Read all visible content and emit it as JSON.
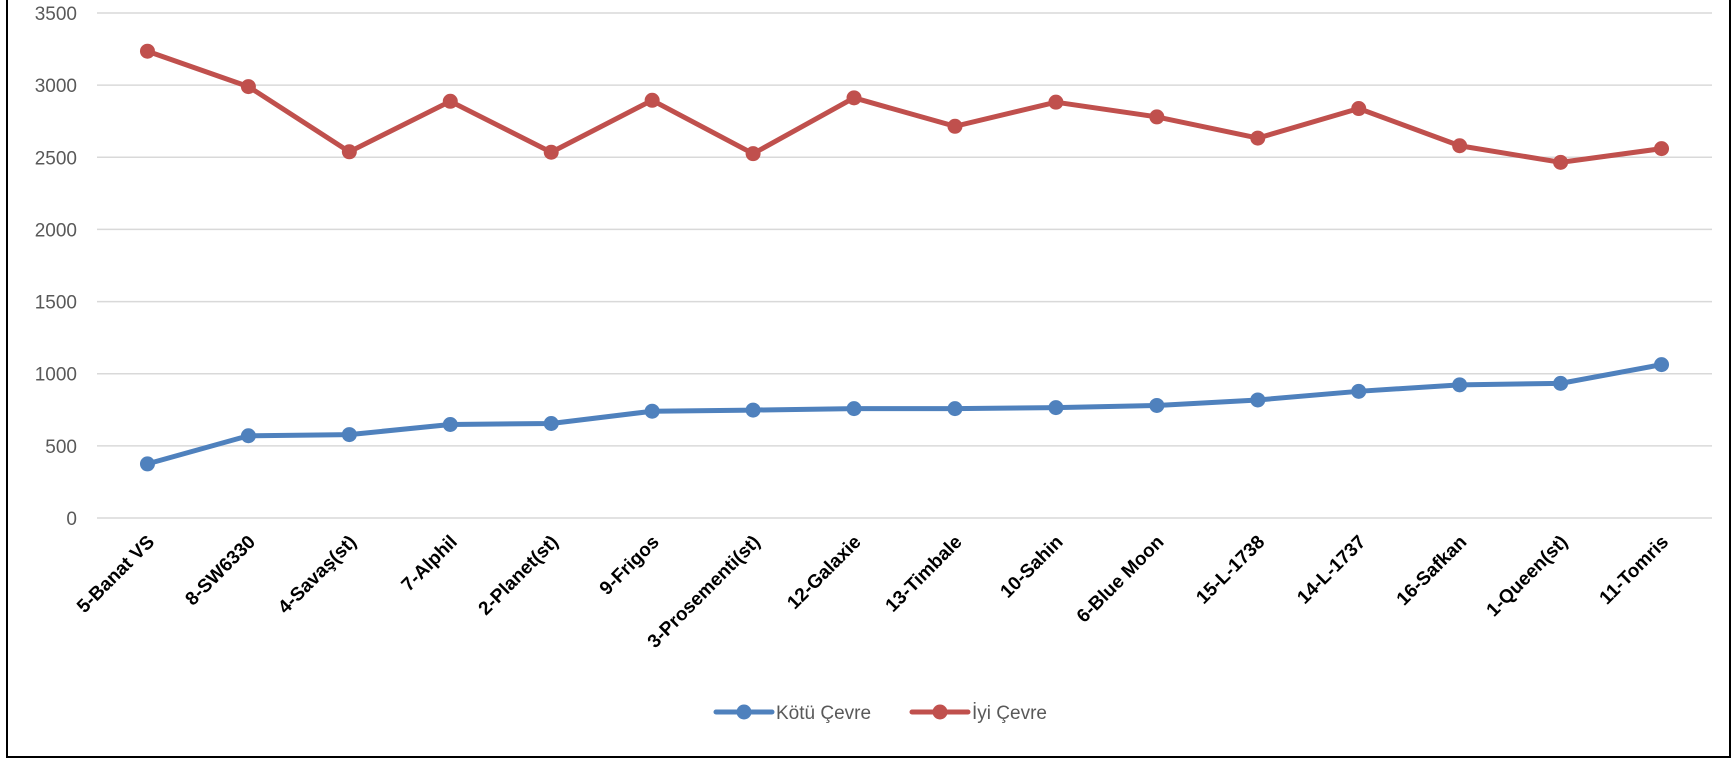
{
  "chart_data": {
    "type": "line",
    "title": "",
    "xlabel": "",
    "ylabel": "",
    "ylim": [
      0,
      3500
    ],
    "yticks": [
      0,
      500,
      1000,
      1500,
      2000,
      2500,
      3000,
      3500
    ],
    "grid": true,
    "legend_position": "bottom",
    "categories": [
      "5-Banat VS",
      "8-SW6330",
      "4-Savaş(st)",
      "7-Alphil",
      "2-Planet(st)",
      "9-Frigos",
      "3-Prosementi(st)",
      "12-Galaxie",
      "13-Timbale",
      "10-Sahin",
      "6-Blue Moon",
      "15-L-1738",
      "14-L-1737",
      "16-Safkan",
      "1-Queen(st)",
      "11-Tomris"
    ],
    "series": [
      {
        "name": "Kötü Çevre",
        "color": "#4F81BD",
        "values": [
          375,
          570,
          578,
          648,
          655,
          740,
          748,
          758,
          758,
          765,
          780,
          818,
          878,
          923,
          933,
          1063
        ]
      },
      {
        "name": "İyi Çevre",
        "color": "#C0504D",
        "values": [
          3235,
          2990,
          2538,
          2888,
          2535,
          2895,
          2525,
          2912,
          2715,
          2882,
          2780,
          2633,
          2838,
          2580,
          2465,
          2560
        ]
      }
    ]
  }
}
